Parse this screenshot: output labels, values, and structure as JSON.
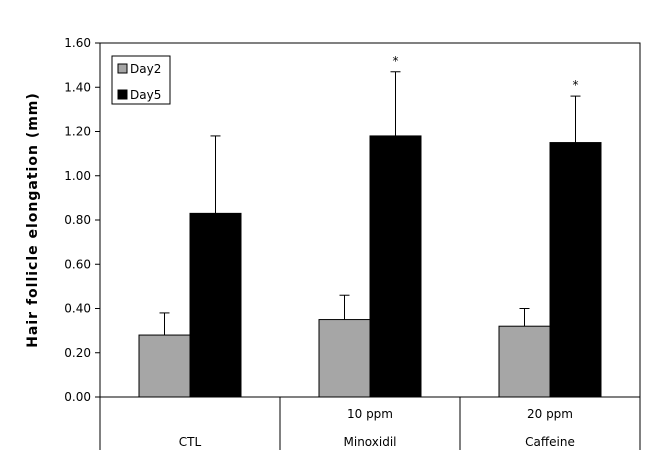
{
  "chart_data": {
    "type": "bar",
    "ylabel": "Hair follicle elongation (mm)",
    "xlabel": "",
    "ylim": [
      0,
      1.6
    ],
    "yticks": [
      "0.00",
      "0.20",
      "0.40",
      "0.60",
      "0.80",
      "1.00",
      "1.20",
      "1.40",
      "1.60"
    ],
    "categories": [
      {
        "top": "",
        "bottom": "CTL"
      },
      {
        "top": "10 ppm",
        "bottom": "Minoxidil"
      },
      {
        "top": "20 ppm",
        "bottom": "Caffeine"
      }
    ],
    "series": [
      {
        "name": "Day2",
        "color": "#a6a6a6",
        "values": [
          0.28,
          0.35,
          0.32
        ],
        "errors": [
          0.1,
          0.11,
          0.08
        ],
        "stars": [
          "",
          "",
          ""
        ]
      },
      {
        "name": "Day5",
        "color": "#000000",
        "values": [
          0.83,
          1.18,
          1.15
        ],
        "errors": [
          0.35,
          0.29,
          0.21
        ],
        "stars": [
          "",
          "*",
          "*"
        ]
      }
    ],
    "legend": "top-left",
    "grid": false
  }
}
